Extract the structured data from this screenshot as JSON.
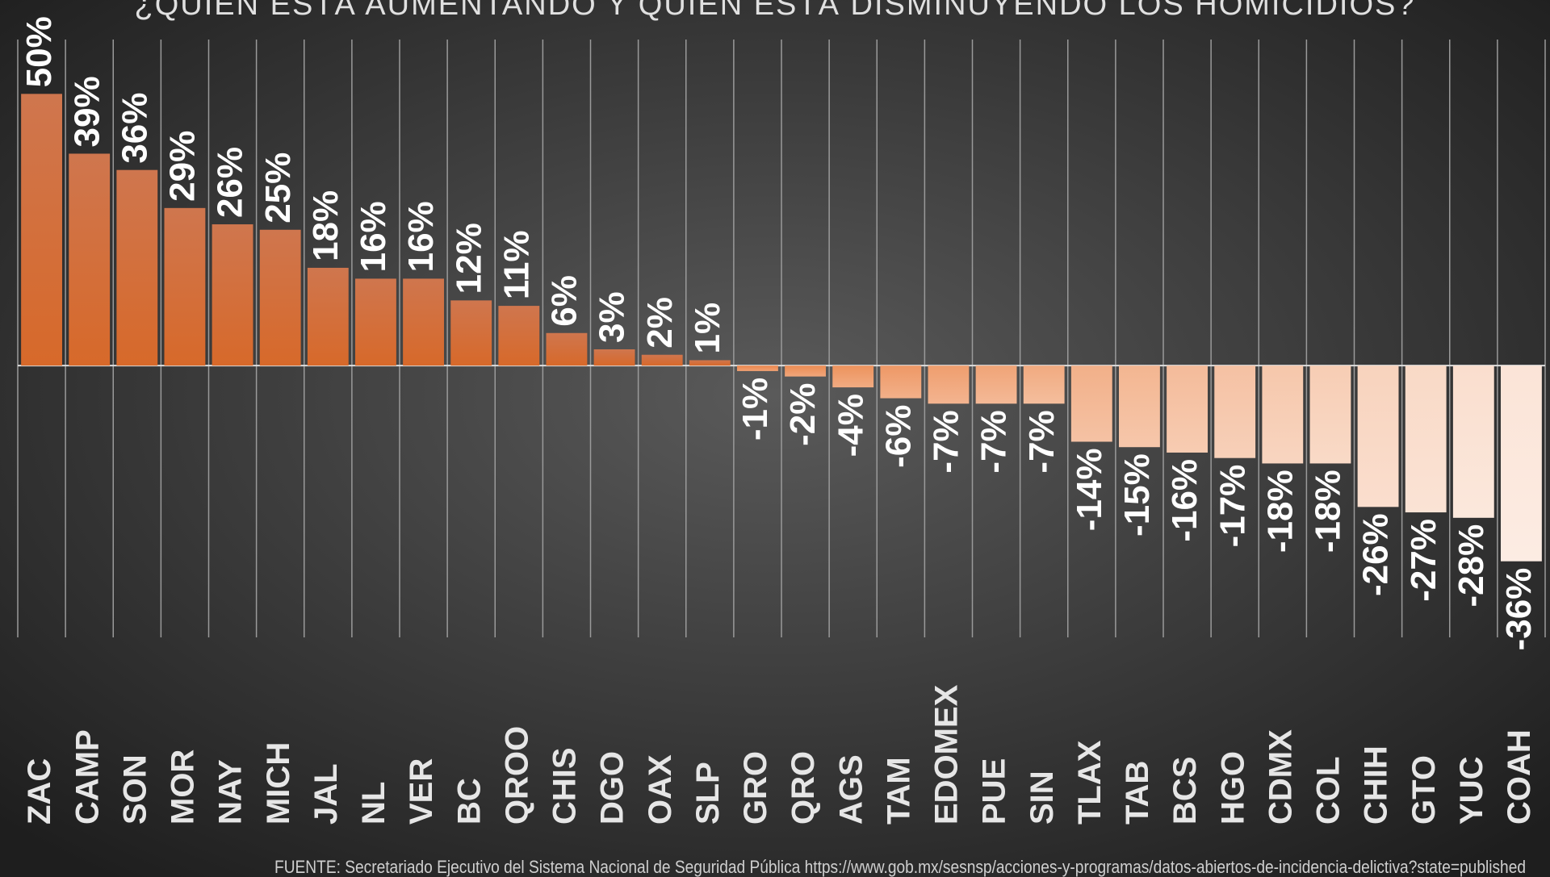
{
  "chart_data": {
    "type": "bar",
    "title": "¿QUIÉN ESTÁ AUMENTANDO Y QUIÉN ESTÁ DISMINUYENDO LOS HOMICIDIOS?",
    "source": "FUENTE: Secretariado Ejecutivo del Sistema Nacional de Seguridad Pública https://www.gob.mx/sesnsp/acciones-y-programas/datos-abiertos-de-incidencia-delictiva?state=published",
    "categories": [
      "ZAC",
      "CAMP",
      "SON",
      "MOR",
      "NAY",
      "MICH",
      "JAL",
      "NL",
      "VER",
      "BC",
      "QROO",
      "CHIS",
      "DGO",
      "OAX",
      "SLP",
      "GRO",
      "QRO",
      "AGS",
      "TAM",
      "EDOMEX",
      "PUE",
      "SIN",
      "TLAX",
      "TAB",
      "BCS",
      "HGO",
      "CDMX",
      "COL",
      "CHIH",
      "GTO",
      "YUC",
      "COAH"
    ],
    "values": [
      50,
      39,
      36,
      29,
      26,
      25,
      18,
      16,
      16,
      12,
      11,
      6,
      3,
      2,
      1,
      -1,
      -2,
      -4,
      -6,
      -7,
      -7,
      -7,
      -14,
      -15,
      -16,
      -17,
      -18,
      -18,
      -26,
      -27,
      -28,
      -36
    ],
    "value_labels": [
      "50%",
      "39%",
      "36%",
      "29%",
      "26%",
      "25%",
      "18%",
      "16%",
      "16%",
      "12%",
      "11%",
      "6%",
      "3%",
      "2%",
      "1%",
      "-1%",
      "-2%",
      "-4%",
      "-6%",
      "-7%",
      "-7%",
      "-7%",
      "-14%",
      "-15%",
      "-16%",
      "-17%",
      "-18%",
      "-18%",
      "-26%",
      "-27%",
      "-28%",
      "-36%"
    ],
    "color": "#e8732e",
    "ylim": [
      -50,
      60
    ]
  }
}
